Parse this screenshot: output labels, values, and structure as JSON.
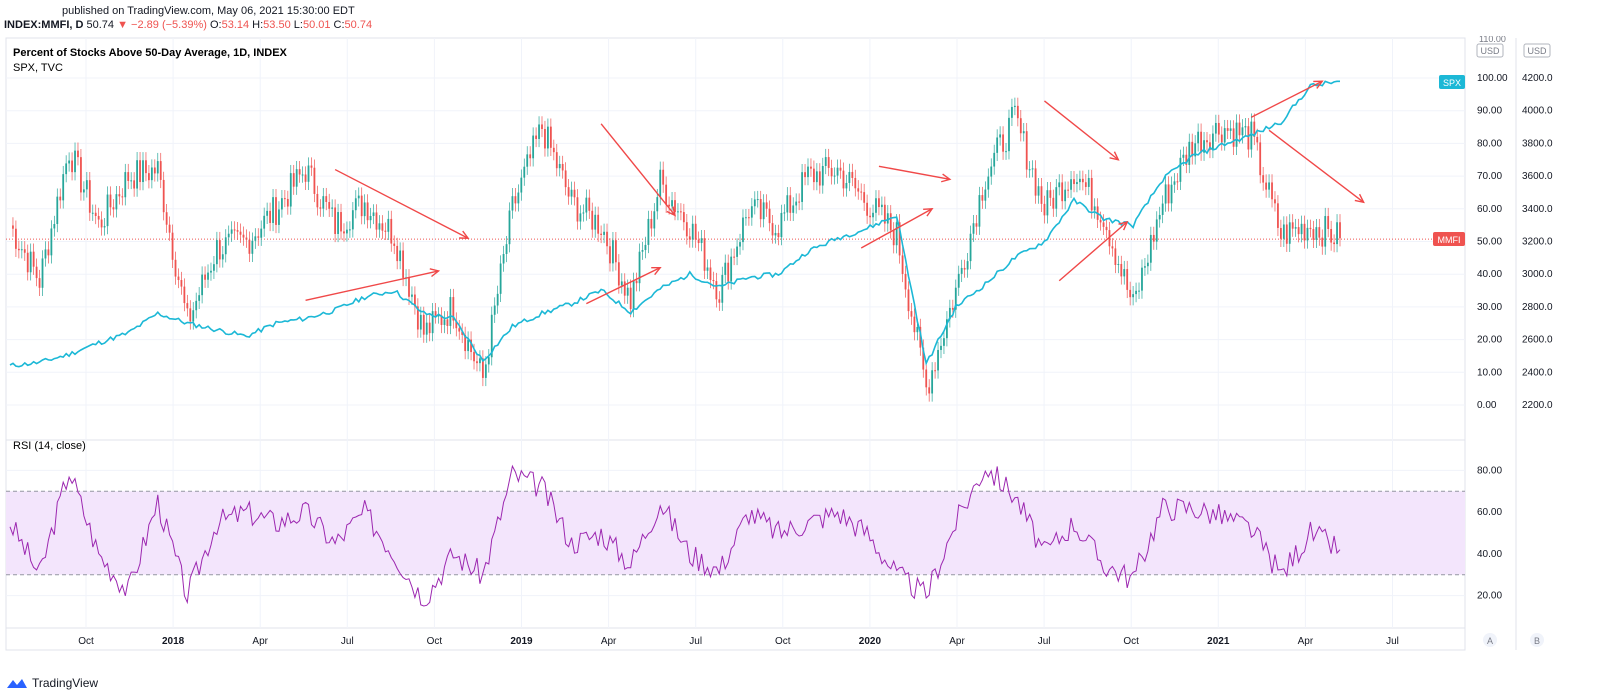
{
  "header": {
    "published": "published on TradingView.com, May 06, 2021 15:30:00 EDT",
    "symbol": "INDEX:MMFI, D",
    "last": "50.74",
    "change": "▼ −2.89 (−5.39%)",
    "open_label": "O:",
    "open": "53.14",
    "high_label": "H:",
    "high": "53.50",
    "low_label": "L:",
    "low": "50.01",
    "close_label": "C:",
    "close": "50.74"
  },
  "legend": {
    "main": "Percent of Stocks Above 50-Day Average, 1D, INDEX",
    "overlay": "SPX, TVC",
    "rsi": "RSI (14, close)"
  },
  "scales": {
    "left_unit": "USD",
    "right_unit": "USD",
    "left_top_partial": "110.00",
    "spx_tag": "SPX",
    "mmfi_tag": "MMFI",
    "scale_a": "A",
    "scale_b": "B"
  },
  "footer": {
    "brand": "TradingView"
  },
  "colors": {
    "up": "#26a69a",
    "down": "#ef5350",
    "spx": "#1cb8d6",
    "rsi_line": "#9c27b0",
    "rsi_band": "#f3e5fc",
    "arrow": "#f04848"
  },
  "chart_data": [
    {
      "type": "line",
      "title": "Percent of Stocks Above 50-Day Average, 1D, INDEX",
      "series": [
        {
          "name": "SPX, TVC",
          "x": [
            "2017-08",
            "2017-09",
            "2017-10",
            "2017-11",
            "2017-12",
            "2018-01",
            "2018-02",
            "2018-03",
            "2018-04",
            "2018-05",
            "2018-06",
            "2018-07",
            "2018-08",
            "2018-09",
            "2018-10",
            "2018-11",
            "2018-12",
            "2019-01",
            "2019-02",
            "2019-03",
            "2019-04",
            "2019-05",
            "2019-06",
            "2019-07",
            "2019-08",
            "2019-09",
            "2019-10",
            "2019-11",
            "2019-12",
            "2020-01",
            "2020-02",
            "2020-03",
            "2020-04",
            "2020-05",
            "2020-06",
            "2020-07",
            "2020-08",
            "2020-09",
            "2020-10",
            "2020-11",
            "2020-12",
            "2021-01",
            "2021-02",
            "2021-03",
            "2021-04",
            "2021-05"
          ],
          "values": [
            2440,
            2460,
            2510,
            2580,
            2640,
            2760,
            2700,
            2660,
            2620,
            2700,
            2730,
            2780,
            2860,
            2900,
            2760,
            2730,
            2470,
            2680,
            2760,
            2820,
            2900,
            2770,
            2910,
            3000,
            2920,
            2980,
            3000,
            3140,
            3220,
            3280,
            3360,
            2450,
            2800,
            2940,
            3100,
            3200,
            3450,
            3340,
            3300,
            3580,
            3720,
            3790,
            3850,
            3930,
            4150,
            4180
          ]
        },
        {
          "name": "Percent of Stocks Above 50-Day Average",
          "x": [
            "2017-08",
            "2017-09",
            "2017-10",
            "2017-11",
            "2017-12",
            "2018-01",
            "2018-02",
            "2018-03",
            "2018-04",
            "2018-05",
            "2018-06",
            "2018-07",
            "2018-08",
            "2018-09",
            "2018-10",
            "2018-11",
            "2018-12",
            "2019-01",
            "2019-02",
            "2019-03",
            "2019-04",
            "2019-05",
            "2019-06",
            "2019-07",
            "2019-08",
            "2019-09",
            "2019-10",
            "2019-11",
            "2019-12",
            "2020-01",
            "2020-02",
            "2020-03",
            "2020-04",
            "2020-05",
            "2020-06",
            "2020-07",
            "2020-08",
            "2020-09",
            "2020-10",
            "2020-11",
            "2020-12",
            "2021-01",
            "2021-02",
            "2021-03",
            "2021-04",
            "2021-05"
          ],
          "values": [
            55,
            38,
            78,
            55,
            70,
            72,
            25,
            48,
            50,
            60,
            72,
            55,
            62,
            52,
            22,
            30,
            8,
            60,
            85,
            62,
            55,
            32,
            68,
            55,
            35,
            60,
            55,
            70,
            72,
            62,
            52,
            5,
            35,
            70,
            88,
            60,
            72,
            58,
            30,
            62,
            80,
            85,
            82,
            52,
            55,
            51
          ]
        }
      ],
      "left_ticks": [
        "100.00",
        "90.00",
        "80.00",
        "70.00",
        "60.00",
        "50.00",
        "40.00",
        "30.00",
        "20.00",
        "10.00",
        "0.00"
      ],
      "right_ticks": [
        "4200.0",
        "4000.0",
        "3800.0",
        "3600.0",
        "3400.0",
        "3200.0",
        "3000.0",
        "2800.0",
        "2600.0",
        "2400.0",
        "2200.0"
      ],
      "x_ticks": [
        "Oct",
        "2018",
        "Apr",
        "Jul",
        "Oct",
        "2019",
        "Apr",
        "Jul",
        "Oct",
        "2020",
        "Apr",
        "Jul",
        "Oct",
        "2021",
        "Apr",
        "Jul"
      ],
      "ylim_left": [
        0,
        100
      ],
      "ylim_right": [
        2200,
        4200
      ],
      "last_value": 50.74
    },
    {
      "type": "line",
      "title": "RSI (14, close)",
      "series": [
        {
          "name": "RSI (14, close)",
          "x": [
            "2017-08",
            "2017-09",
            "2017-10",
            "2017-11",
            "2017-12",
            "2018-01",
            "2018-02",
            "2018-03",
            "2018-04",
            "2018-05",
            "2018-06",
            "2018-07",
            "2018-08",
            "2018-09",
            "2018-10",
            "2018-11",
            "2018-12",
            "2019-01",
            "2019-02",
            "2019-03",
            "2019-04",
            "2019-05",
            "2019-06",
            "2019-07",
            "2019-08",
            "2019-09",
            "2019-10",
            "2019-11",
            "2019-12",
            "2020-01",
            "2020-02",
            "2020-03",
            "2020-04",
            "2020-05",
            "2020-06",
            "2020-07",
            "2020-08",
            "2020-09",
            "2020-10",
            "2020-11",
            "2020-12",
            "2021-01",
            "2021-02",
            "2021-03",
            "2021-04",
            "2021-05"
          ],
          "values": [
            55,
            30,
            80,
            40,
            22,
            65,
            20,
            55,
            60,
            55,
            60,
            45,
            60,
            40,
            18,
            40,
            30,
            78,
            72,
            45,
            50,
            35,
            65,
            40,
            32,
            60,
            50,
            55,
            60,
            50,
            30,
            20,
            55,
            82,
            68,
            40,
            55,
            35,
            28,
            62,
            62,
            58,
            52,
            30,
            50,
            42
          ]
        }
      ],
      "ticks": [
        "80.00",
        "60.00",
        "40.00",
        "20.00"
      ],
      "overbought": 70,
      "oversold": 30,
      "ylim": [
        15,
        85
      ]
    }
  ]
}
